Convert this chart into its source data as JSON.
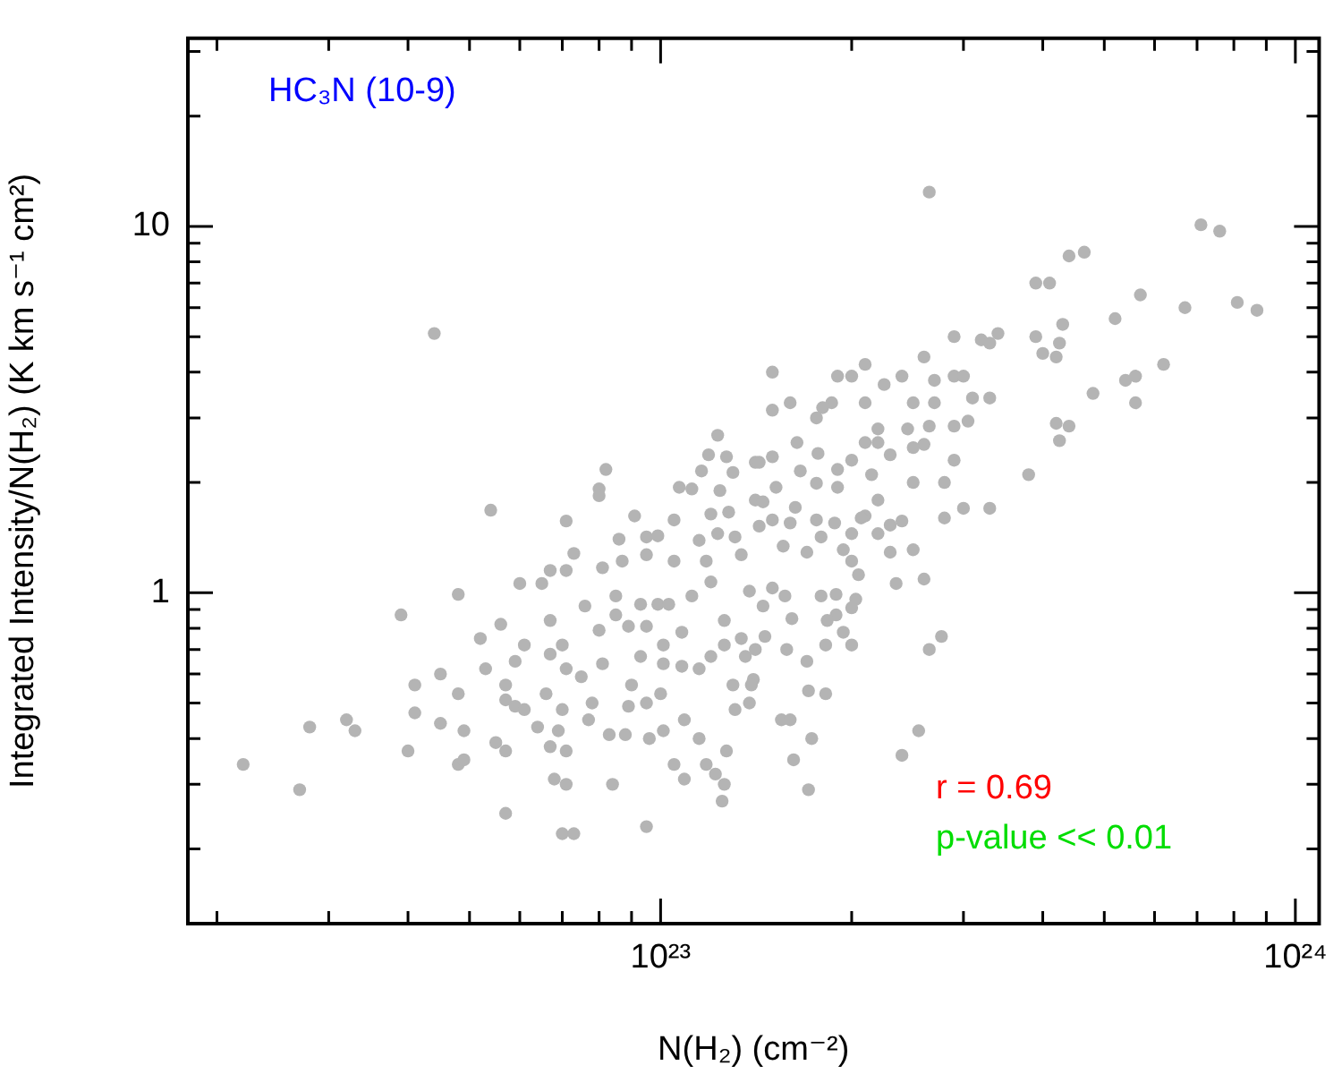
{
  "chart_data": {
    "type": "scatter",
    "title": "HC₃N (10-9)",
    "xlabel": "N(H₂) (cm⁻²)",
    "ylabel": "Integrated Intensity/N(H₂) (K km s⁻¹ cm²)",
    "annotations": [
      "r = 0.69",
      "p-value << 0.01"
    ],
    "log": "xy",
    "marker": "circle",
    "xlim": [
      1.8e+22,
      1.09e+24
    ],
    "xticks": [
      {
        "value": 2e+22,
        "label": null
      },
      {
        "value": 3e+22,
        "label": null
      },
      {
        "value": 4e+22,
        "label": null
      },
      {
        "value": 5e+22,
        "label": null
      },
      {
        "value": 6e+22,
        "label": null
      },
      {
        "value": 7e+22,
        "label": null
      },
      {
        "value": 8e+22,
        "label": null
      },
      {
        "value": 9e+22,
        "label": null
      },
      {
        "value": 1e+23,
        "label": "10²³"
      },
      {
        "value": 2e+23,
        "label": null
      },
      {
        "value": 3e+23,
        "label": null
      },
      {
        "value": 4e+23,
        "label": null
      },
      {
        "value": 5e+23,
        "label": null
      },
      {
        "value": 6e+23,
        "label": null
      },
      {
        "value": 7e+23,
        "label": null
      },
      {
        "value": 8e+23,
        "label": null
      },
      {
        "value": 9e+23,
        "label": null
      },
      {
        "value": 1e+24,
        "label": "10²⁴"
      }
    ],
    "ylim": [
      0.125,
      32.6
    ],
    "yticks": [
      {
        "value": 0.2,
        "label": null
      },
      {
        "value": 0.3,
        "label": null
      },
      {
        "value": 0.4,
        "label": null
      },
      {
        "value": 0.5,
        "label": null
      },
      {
        "value": 0.6,
        "label": null
      },
      {
        "value": 0.7,
        "label": null
      },
      {
        "value": 0.8,
        "label": null
      },
      {
        "value": 0.9,
        "label": null
      },
      1,
      {
        "value": 2,
        "label": null
      },
      {
        "value": 3,
        "label": null
      },
      {
        "value": 4,
        "label": null
      },
      {
        "value": 5,
        "label": null
      },
      {
        "value": 6,
        "label": null
      },
      {
        "value": 7,
        "label": null
      },
      {
        "value": 8,
        "label": null
      },
      {
        "value": 9,
        "label": null
      },
      10,
      {
        "value": 20,
        "label": null
      },
      {
        "value": 30,
        "label": null
      }
    ],
    "x": [
      2.2e+22,
      2.7e+22,
      2.8e+22,
      3.2e+22,
      3.3e+22,
      3.9e+22,
      4.1e+22,
      4.1e+22,
      4e+22,
      4.5e+22,
      4.5e+22,
      4.8e+22,
      4.9e+22,
      4.8e+22,
      4.9e+22,
      4.8e+22,
      5.2e+22,
      5.3e+22,
      5.6e+22,
      5.7e+22,
      5.7e+22,
      5.5e+22,
      5.7e+22,
      5.7e+22,
      6e+22,
      5.9e+22,
      6.1e+22,
      6.4e+22,
      6.7e+22,
      6.8e+22,
      7.1e+22,
      7e+22,
      7.3e+22,
      7.1e+22,
      6.9e+22,
      7e+22,
      6.6e+22,
      5.9e+22,
      6.1e+22,
      6.7e+22,
      6.7e+22,
      7e+22,
      7.1e+22,
      7.5e+22,
      7.6e+22,
      7.3e+22,
      6.7e+22,
      6.5e+22,
      7.1e+22,
      8e+22,
      8.1e+22,
      7.8e+22,
      7.7e+22,
      8.3e+22,
      8.4e+22,
      8.8e+22,
      9.5e+22,
      9.6e+22,
      1.01e+23,
      1.05e+23,
      1.09e+23,
      1.18e+23,
      1.22e+23,
      1.26e+23,
      1.25e+23,
      1.27e+23,
      1.15e+23,
      1.09e+23,
      1e+23,
      9.5e+22,
      9e+22,
      8.9e+22,
      9.3e+22,
      1.01e+23,
      1.08e+23,
      1.15e+23,
      1.2e+23,
      1.26e+23,
      1.34e+23,
      1.36e+23,
      1.3e+23,
      1.31e+23,
      1.38e+23,
      1.4e+23,
      8.5e+22,
      8.9e+22,
      9.5e+22,
      1.01e+23,
      1.08e+23,
      1.12e+23,
      1.2e+23,
      1.26e+23,
      1.38e+23,
      1.34e+23,
      1.18e+23,
      1.05e+23,
      9.5e+22,
      8.7e+22,
      8.1e+22,
      8.5e+22,
      9.9e+22,
      9.3e+22,
      1.03e+23,
      4.4e+22,
      5.4e+22,
      7.1e+22,
      8e+22,
      8e+22,
      8.2e+22,
      9.1e+22,
      8.6e+22,
      9.5e+22,
      9.9e+22,
      1.05e+23,
      1.07e+23,
      1.12e+23,
      1.16e+23,
      1.23e+23,
      1.19e+23,
      1.27e+23,
      1.24e+23,
      1.2e+23,
      1.28e+23,
      1.3e+23,
      1.15e+23,
      1.23e+23,
      1.31e+23,
      1.41e+23,
      1.41e+23,
      2.65e+23,
      7.1e+23,
      7.6e+23,
      4.4e+23,
      4.65e+23,
      3.9e+23,
      4.1e+23,
      5.7e+23,
      4.3e+23,
      5.2e+23,
      6.7e+23,
      8.1e+23,
      8.7e+23,
      3.9e+23,
      4.25e+23,
      4e+23,
      4.2e+23,
      3.4e+23,
      3.2e+23,
      3.3e+23,
      2.9e+23,
      2.6e+23,
      1.5e+23,
      1.9e+23,
      2.1e+23,
      2e+23,
      2.25e+23,
      2.4e+23,
      2.7e+23,
      2.9e+23,
      3e+23,
      3.1e+23,
      3.3e+23,
      4.8e+23,
      5.4e+23,
      5.6e+23,
      6.2e+23,
      5.6e+23,
      4.2e+23,
      4.4e+23,
      4.25e+23,
      3.8e+23,
      3.3e+23,
      3e+23,
      2.8e+23,
      2.8e+23,
      2.5e+23,
      2.4e+23,
      2.3e+23,
      2.2e+23,
      2.2e+23,
      2.1e+23,
      2e+23,
      1.9e+23,
      1.9e+23,
      2.1e+23,
      2.2e+23,
      2.2e+23,
      2.45e+23,
      2.5e+23,
      2.65e+23,
      2.7e+23,
      2.9e+23,
      3.05e+23,
      2.9e+23,
      2.6e+23,
      2.5e+23,
      2.3e+23,
      2.15e+23,
      2e+23,
      2.1e+23,
      1.86e+23,
      1.8e+23,
      1.76e+23,
      1.6e+23,
      1.5e+23,
      1.64e+23,
      1.5e+23,
      1.43e+23,
      1.77e+23,
      1.66e+23,
      1.76e+23,
      1.52e+23,
      1.45e+23,
      1.63e+23,
      1.76e+23,
      1.88e+23,
      1.6e+23,
      1.5e+23,
      1.43e+23,
      1.79e+23,
      1.7e+23,
      1.56e+23,
      1.94e+23,
      2.3e+23,
      2.5e+23,
      2.07e+23,
      2e+23,
      2.05e+23,
      2.35e+23,
      2.6e+23,
      1.79e+23,
      1.89e+23,
      2.03e+23,
      2e+23,
      1.89e+23,
      1.83e+23,
      1.94e+23,
      2e+23,
      1.82e+23,
      1.58e+23,
      1.7e+23,
      1.46e+23,
      1.41e+23,
      1.61e+23,
      1.57e+23,
      1.5e+23,
      1.45e+23,
      1.71e+23,
      1.82e+23,
      1.55e+23,
      1.6e+23,
      1.73e+23,
      1.62e+23,
      1.71e+23,
      2.4e+23,
      2.55e+23,
      2.65e+23,
      2.77e+23,
      1.39e+23
    ],
    "series": [
      {
        "color": "#b4b4b4",
        "values": [
          0.34,
          0.29,
          0.43,
          0.45,
          0.42,
          0.87,
          0.56,
          0.47,
          0.37,
          0.6,
          0.44,
          0.34,
          0.35,
          0.53,
          0.42,
          0.99,
          0.75,
          0.62,
          0.82,
          0.56,
          0.51,
          0.39,
          0.37,
          0.25,
          1.06,
          0.49,
          0.48,
          0.43,
          0.38,
          0.31,
          0.3,
          0.22,
          0.22,
          0.37,
          0.42,
          0.48,
          0.53,
          0.65,
          0.72,
          0.68,
          0.84,
          0.72,
          0.62,
          0.59,
          0.92,
          1.28,
          1.15,
          1.06,
          1.15,
          0.79,
          0.64,
          0.5,
          0.45,
          0.41,
          0.3,
          0.41,
          0.23,
          0.4,
          0.42,
          0.34,
          0.31,
          0.34,
          0.32,
          0.3,
          0.27,
          0.37,
          0.4,
          0.45,
          0.53,
          0.5,
          0.56,
          0.49,
          0.67,
          0.64,
          0.63,
          0.62,
          0.67,
          0.72,
          0.75,
          0.67,
          0.56,
          0.48,
          0.5,
          0.58,
          0.87,
          0.81,
          0.81,
          0.72,
          0.78,
          0.98,
          1.07,
          0.84,
          1.01,
          1.27,
          1.22,
          1.22,
          1.27,
          1.22,
          1.17,
          0.98,
          0.93,
          0.93,
          0.93,
          5.1,
          1.68,
          1.57,
          1.92,
          1.84,
          2.17,
          1.62,
          1.4,
          1.42,
          1.43,
          1.58,
          1.94,
          1.92,
          2.15,
          2.69,
          2.38,
          2.35,
          1.9,
          1.64,
          1.66,
          2.13,
          1.39,
          1.45,
          1.42,
          2.27,
          1.79,
          12.4,
          10.1,
          9.7,
          8.3,
          8.5,
          7.0,
          7.0,
          6.5,
          5.4,
          5.6,
          6.0,
          6.2,
          5.9,
          5.0,
          4.8,
          4.5,
          4.4,
          5.1,
          4.9,
          4.8,
          5.0,
          4.4,
          4.0,
          3.9,
          4.2,
          3.9,
          3.7,
          3.9,
          3.8,
          3.9,
          3.9,
          3.4,
          3.4,
          3.5,
          3.8,
          3.9,
          4.2,
          3.3,
          2.9,
          2.85,
          2.6,
          2.1,
          1.7,
          1.7,
          1.6,
          2.0,
          2.0,
          1.57,
          1.53,
          1.45,
          1.79,
          1.62,
          1.45,
          1.94,
          2.17,
          2.57,
          2.57,
          2.8,
          2.8,
          3.3,
          2.85,
          3.3,
          2.85,
          2.94,
          2.3,
          2.54,
          2.49,
          2.38,
          2.1,
          2.3,
          3.3,
          3.3,
          3.2,
          3.0,
          3.3,
          3.15,
          2.57,
          2.35,
          2.27,
          2.4,
          2.15,
          1.99,
          1.94,
          1.77,
          1.71,
          1.58,
          1.55,
          1.55,
          1.58,
          1.52,
          1.42,
          1.29,
          1.34,
          1.31,
          1.29,
          1.31,
          1.6,
          1.22,
          1.12,
          1.06,
          1.09,
          0.98,
          0.99,
          0.96,
          0.91,
          0.87,
          0.84,
          0.78,
          0.72,
          0.72,
          0.7,
          0.65,
          0.76,
          0.7,
          0.85,
          0.98,
          1.03,
          0.92,
          0.54,
          0.53,
          0.45,
          0.45,
          0.4,
          0.35,
          0.29,
          0.36,
          0.42,
          0.7,
          0.76,
          0.56
        ]
      }
    ]
  }
}
